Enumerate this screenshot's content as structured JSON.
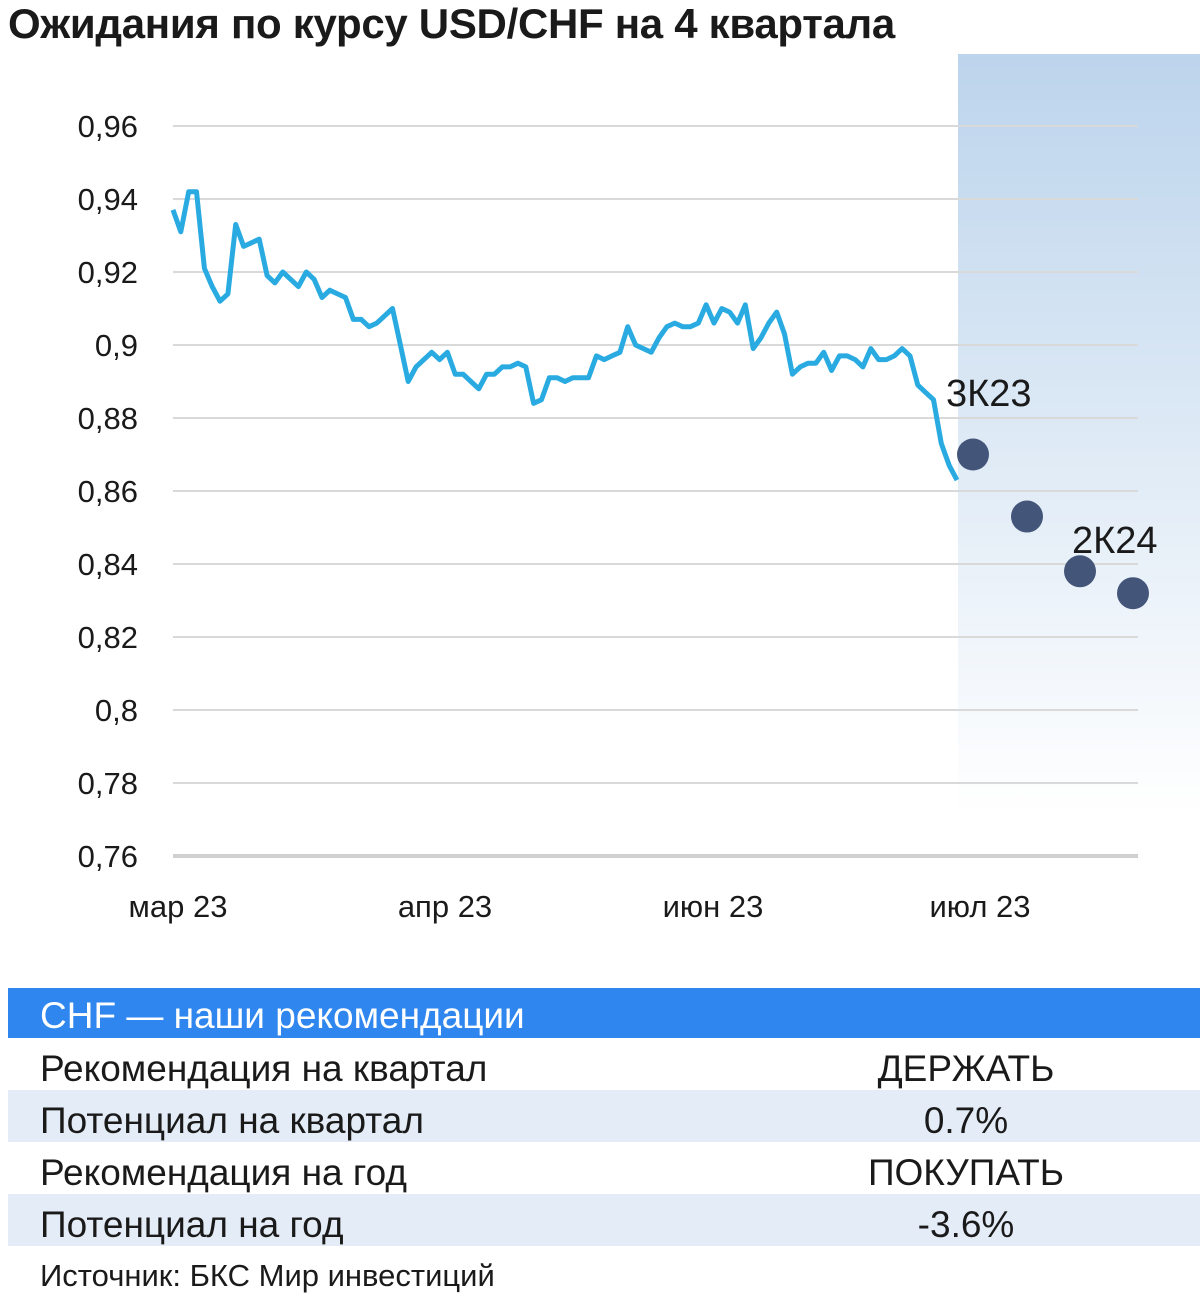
{
  "title": "Ожидания по курсу USD/CHF на 4 квартала",
  "chart_data": {
    "type": "line",
    "title": "Ожидания по курсу USD/CHF на 4 квартала",
    "ylim": [
      0.76,
      0.96
    ],
    "y_ticks": [
      "0,96",
      "0,94",
      "0,92",
      "0,9",
      "0,88",
      "0,86",
      "0,84",
      "0,82",
      "0,8",
      "0,78",
      "0,76"
    ],
    "y_tick_values": [
      0.96,
      0.94,
      0.92,
      0.9,
      0.88,
      0.86,
      0.84,
      0.82,
      0.8,
      0.78,
      0.76
    ],
    "x_ticks": [
      "мар 23",
      "апр 23",
      "июн 23",
      "июл 23"
    ],
    "grid": true,
    "series_color": "#29abe2",
    "forecast_color": "#44557a",
    "forecast_band_color": "#bcd4ec",
    "series": [
      {
        "values": [
          0.937,
          0.931,
          0.942,
          0.942,
          0.921,
          0.916,
          0.912,
          0.914,
          0.933,
          0.927,
          0.928,
          0.929,
          0.919,
          0.917,
          0.92,
          0.918,
          0.916,
          0.92,
          0.918,
          0.913,
          0.915,
          0.914,
          0.913,
          0.907,
          0.907,
          0.905,
          0.906,
          0.908,
          0.91,
          0.9,
          0.89,
          0.894,
          0.896,
          0.898,
          0.896,
          0.898,
          0.892,
          0.892,
          0.89,
          0.888,
          0.892,
          0.892,
          0.894,
          0.894,
          0.895,
          0.894,
          0.884,
          0.885,
          0.891,
          0.891,
          0.89,
          0.891,
          0.891,
          0.891,
          0.897,
          0.896,
          0.897,
          0.898,
          0.905,
          0.9,
          0.899,
          0.898,
          0.902,
          0.905,
          0.906,
          0.905,
          0.905,
          0.906,
          0.911,
          0.906,
          0.91,
          0.909,
          0.906,
          0.911,
          0.899,
          0.902,
          0.906,
          0.909,
          0.903,
          0.892,
          0.894,
          0.895,
          0.895,
          0.898,
          0.893,
          0.897,
          0.897,
          0.896,
          0.894,
          0.899,
          0.896,
          0.896,
          0.897,
          0.899,
          0.897,
          0.889,
          0.887,
          0.885,
          0.873,
          0.867,
          0.863
        ]
      },
      {
        "type": "scatter",
        "values": [
          0.87,
          0.853,
          0.838,
          0.832
        ]
      }
    ],
    "annotations": [
      "3К23",
      "2К24"
    ]
  },
  "table": {
    "header": "CHF — наши рекомендации",
    "rows": [
      {
        "label": "Рекомендация на квартал",
        "value": "ДЕРЖАТЬ"
      },
      {
        "label": "Потенциал на квартал",
        "value": "0.7%"
      },
      {
        "label": "Рекомендация на год",
        "value": "ПОКУПАТЬ"
      },
      {
        "label": "Потенциал на год",
        "value": "-3.6%"
      }
    ]
  },
  "source": "Источник: БКС Мир инвестиций"
}
